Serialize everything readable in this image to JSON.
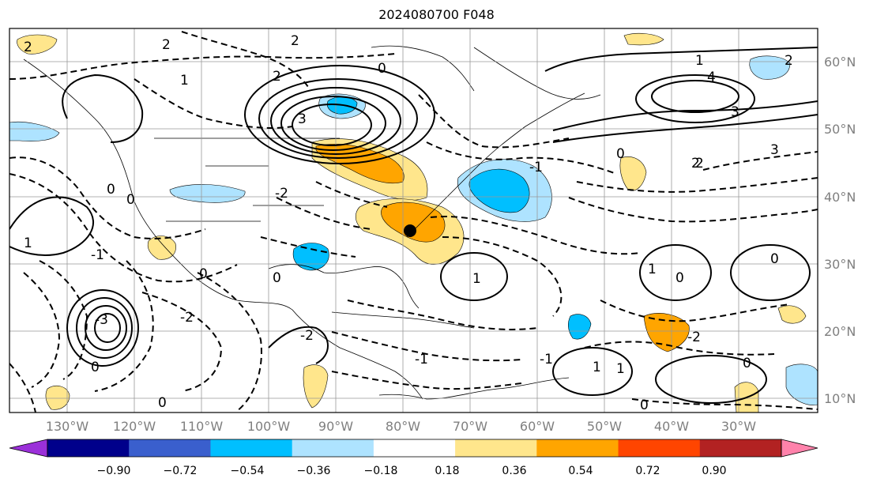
{
  "title": "2024080700 F048",
  "map": {
    "lon_labels": [
      "130°W",
      "120°W",
      "110°W",
      "100°W",
      "90°W",
      "80°W",
      "70°W",
      "60°W",
      "50°W",
      "40°W",
      "30°W"
    ],
    "lat_labels": [
      "60°N",
      "50°N",
      "40°N",
      "30°N",
      "20°N",
      "10°N"
    ],
    "contour_labels": [
      "2",
      "2",
      "1",
      "2",
      "0",
      "2",
      "3",
      "1",
      "2",
      "4",
      "3",
      "3",
      "2",
      "0",
      "-1",
      "2",
      "-2",
      "0",
      "-1",
      "-2",
      "0",
      "1",
      "-3",
      "0",
      "1",
      "-2",
      "-1",
      "1",
      "0",
      "-2",
      "0",
      "0",
      "1",
      "0",
      "0",
      "0",
      "0",
      "-1",
      "1"
    ],
    "marker": "black-dot"
  },
  "colorbar": {
    "ticks": [
      "−0.90",
      "−0.72",
      "−0.54",
      "−0.36",
      "−0.18",
      "0.18",
      "0.36",
      "0.54",
      "0.72",
      "0.90"
    ],
    "colors": [
      "#9b30d9",
      "#00008b",
      "#3a5fcd",
      "#00bfff",
      "#aee3ff",
      "#ffffff",
      "#ffe68c",
      "#ffa500",
      "#ff4500",
      "#b22222",
      "#ff82ab"
    ]
  }
}
